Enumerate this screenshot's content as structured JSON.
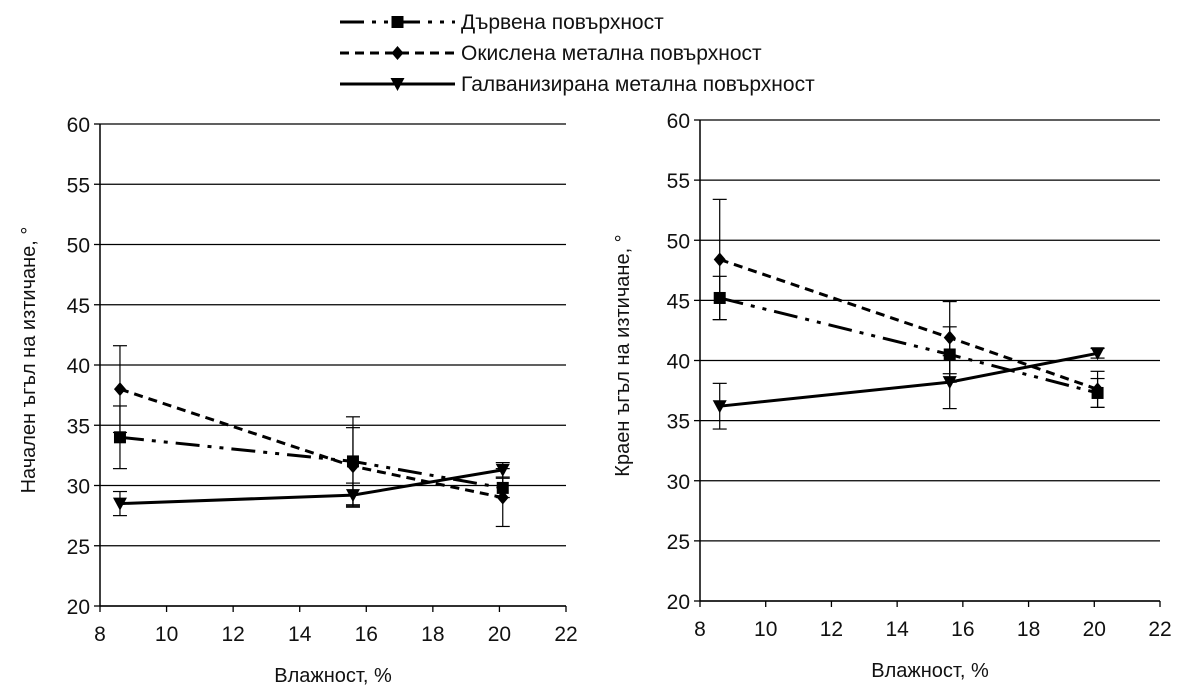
{
  "legend": [
    {
      "name": "Дървена повърхност",
      "marker": "square",
      "dash": "dashdotdot"
    },
    {
      "name": "Окислена метална повърхност",
      "marker": "diamond",
      "dash": "dash"
    },
    {
      "name": "Галванизирана метална повърхност",
      "marker": "triangle-down",
      "dash": "solid"
    }
  ],
  "chart_data": [
    {
      "type": "line",
      "xlabel": "Влажност, %",
      "ylabel": "Начален ъгъл на изтичане, °",
      "xlim": [
        8,
        22
      ],
      "ylim": [
        20,
        60
      ],
      "xticks": [
        8,
        10,
        12,
        14,
        16,
        18,
        20,
        22
      ],
      "yticks": [
        20,
        25,
        30,
        35,
        40,
        45,
        50,
        55,
        60
      ],
      "grid": "horizontal",
      "legend_position": "top",
      "series": [
        {
          "name": "Дървена повърхност",
          "x": [
            8.6,
            15.6,
            20.1
          ],
          "y": [
            34.0,
            32.0,
            29.8
          ],
          "err": [
            2.6,
            3.7,
            0.8
          ]
        },
        {
          "name": "Окислена метална повърхност",
          "x": [
            8.6,
            15.6,
            20.1
          ],
          "y": [
            38.0,
            31.6,
            29.0
          ],
          "err": [
            3.6,
            3.2,
            2.4
          ]
        },
        {
          "name": "Галванизирана метална повърхност",
          "x": [
            8.6,
            15.6,
            20.1
          ],
          "y": [
            28.5,
            29.2,
            31.3
          ],
          "err": [
            1.0,
            1.0,
            0.6
          ]
        }
      ]
    },
    {
      "type": "line",
      "xlabel": "Влажност, %",
      "ylabel": "Краен ъгъл на изтичане, °",
      "xlim": [
        8,
        22
      ],
      "ylim": [
        20,
        60
      ],
      "xticks": [
        8,
        10,
        12,
        14,
        16,
        18,
        20,
        22
      ],
      "yticks": [
        20,
        25,
        30,
        35,
        40,
        45,
        50,
        55,
        60
      ],
      "grid": "horizontal",
      "legend_position": "top",
      "series": [
        {
          "name": "Дървена повърхност",
          "x": [
            8.6,
            15.6,
            20.1
          ],
          "y": [
            45.2,
            40.5,
            37.3
          ],
          "err": [
            1.8,
            2.3,
            1.2
          ]
        },
        {
          "name": "Окислена метална повърхност",
          "x": [
            8.6,
            15.6,
            20.1
          ],
          "y": [
            48.4,
            41.9,
            37.6
          ],
          "err": [
            5.0,
            3.0,
            1.5
          ]
        },
        {
          "name": "Галванизирана метална повърхност",
          "x": [
            8.6,
            15.6,
            20.1
          ],
          "y": [
            36.2,
            38.2,
            40.6
          ],
          "err": [
            1.9,
            2.2,
            0.4
          ]
        }
      ]
    }
  ]
}
